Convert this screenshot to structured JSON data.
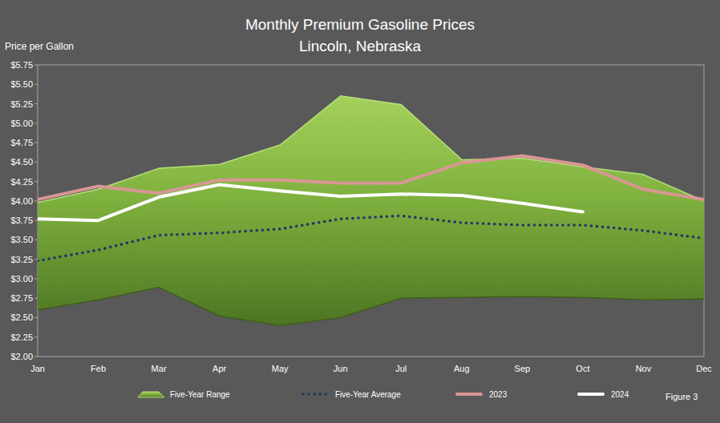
{
  "chart_data": {
    "type": "line",
    "title": "Monthly Premium Gasoline Prices",
    "subtitle": "Lincoln, Nebraska",
    "y_label": "Price per Gallon",
    "annotations": [
      "Figure 3"
    ],
    "categories": [
      "Jan",
      "Feb",
      "Mar",
      "Apr",
      "May",
      "Jun",
      "Jul",
      "Aug",
      "Sep",
      "Oct",
      "Nov",
      "Dec"
    ],
    "series": [
      {
        "name": "Five-Year Range",
        "type": "range",
        "color": "#7fb13e",
        "low": [
          2.6,
          2.73,
          2.89,
          2.52,
          2.4,
          2.5,
          2.75,
          2.76,
          2.77,
          2.76,
          2.73,
          2.74
        ],
        "high": [
          3.98,
          4.15,
          4.42,
          4.47,
          4.72,
          5.35,
          5.24,
          4.53,
          4.55,
          4.44,
          4.34,
          4.0
        ]
      },
      {
        "name": "Five-Year Average",
        "type": "line",
        "color": "#1f3864",
        "line_style": "dotted",
        "values": [
          3.23,
          3.37,
          3.56,
          3.59,
          3.64,
          3.77,
          3.81,
          3.72,
          3.69,
          3.69,
          3.62,
          3.52
        ]
      },
      {
        "name": "2023",
        "type": "line",
        "color": "#d99694",
        "line_style": "solid",
        "values": [
          4.02,
          4.19,
          4.1,
          4.27,
          4.27,
          4.23,
          4.23,
          4.49,
          4.58,
          4.46,
          4.15,
          4.02
        ]
      },
      {
        "name": "2024",
        "type": "line",
        "color": "#ffffff",
        "line_style": "solid",
        "values": [
          3.77,
          3.75,
          4.05,
          4.21,
          4.13,
          4.06,
          4.09,
          4.07,
          3.97,
          3.86,
          null,
          null
        ]
      }
    ],
    "ylim": [
      2.0,
      5.75
    ],
    "yticks": [
      {
        "value": 2.0,
        "label": "$2.00"
      },
      {
        "value": 2.25,
        "label": "$2.25"
      },
      {
        "value": 2.5,
        "label": "$2.50"
      },
      {
        "value": 2.75,
        "label": "$2.75"
      },
      {
        "value": 3.0,
        "label": "$3.00"
      },
      {
        "value": 3.25,
        "label": "$3.25"
      },
      {
        "value": 3.5,
        "label": "$3.50"
      },
      {
        "value": 3.75,
        "label": "$3.75"
      },
      {
        "value": 4.0,
        "label": "$4.00"
      },
      {
        "value": 4.25,
        "label": "$4.25"
      },
      {
        "value": 4.5,
        "label": "$4.50"
      },
      {
        "value": 4.75,
        "label": "$4.75"
      },
      {
        "value": 5.0,
        "label": "$5.00"
      },
      {
        "value": 5.25,
        "label": "$5.25"
      },
      {
        "value": 5.5,
        "label": "$5.50"
      },
      {
        "value": 5.75,
        "label": "$5.75"
      }
    ],
    "grid": false,
    "legend": "bottom"
  }
}
